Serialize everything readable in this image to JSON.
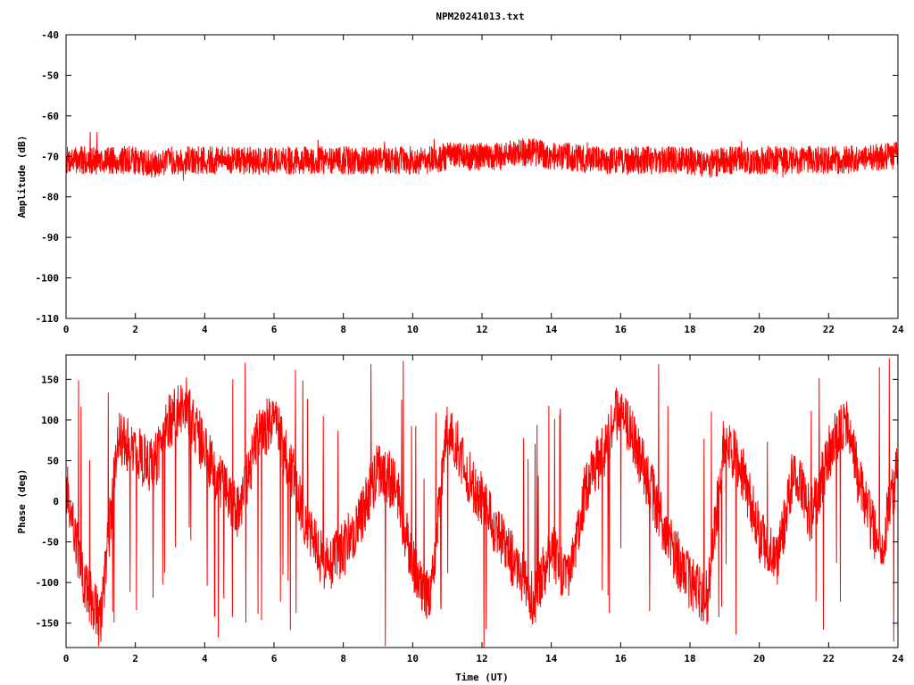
{
  "title": "NPM20241013.txt",
  "chart_data": [
    {
      "type": "line",
      "title": "NPM20241013.txt",
      "xlabel": "",
      "ylabel": "Amplitude (dB)",
      "xlim": [
        0,
        24
      ],
      "ylim": [
        -110,
        -40
      ],
      "xticks": [
        "0",
        "2",
        "4",
        "6",
        "8",
        "10",
        "12",
        "14",
        "16",
        "18",
        "20",
        "22",
        "24"
      ],
      "yticks": [
        "-40",
        "-50",
        "-60",
        "-70",
        "-80",
        "-90",
        "-100",
        "-110"
      ],
      "grid": false,
      "series": [
        {
          "color": "#ff0000",
          "x": [
            0,
            0.5,
            1,
            1.5,
            2,
            2.5,
            3,
            3.5,
            4,
            4.5,
            5,
            5.5,
            6,
            6.5,
            7,
            7.5,
            8,
            8.5,
            9,
            9.5,
            10,
            10.5,
            11,
            11.5,
            12,
            12.5,
            13,
            13.5,
            14,
            14.5,
            15,
            15.5,
            16,
            16.5,
            17,
            17.5,
            18,
            18.5,
            19,
            19.5,
            20,
            20.5,
            21,
            21.5,
            22,
            22.5,
            23,
            23.5,
            24
          ],
          "y": [
            -71,
            -71,
            -71,
            -71,
            -71,
            -72,
            -71,
            -71,
            -71,
            -71,
            -71,
            -71,
            -71,
            -71,
            -71,
            -71,
            -71,
            -71,
            -71,
            -71,
            -71,
            -71,
            -70,
            -70,
            -70,
            -70,
            -69,
            -69,
            -70,
            -70,
            -71,
            -71,
            -71,
            -71,
            -71,
            -71,
            -71,
            -72,
            -71,
            -71,
            -71,
            -71,
            -71,
            -71,
            -71,
            -71,
            -70,
            -70,
            -70
          ],
          "band": [
            -76,
            -64
          ]
        }
      ]
    },
    {
      "type": "line",
      "title": "",
      "xlabel": "Time (UT)",
      "ylabel": "Phase (deg)",
      "xlim": [
        0,
        24
      ],
      "ylim": [
        -180,
        180
      ],
      "xticks": [
        "0",
        "2",
        "4",
        "6",
        "8",
        "10",
        "12",
        "14",
        "16",
        "18",
        "20",
        "22",
        "24"
      ],
      "yticks": [
        "150",
        "100",
        "50",
        "0",
        "-50",
        "-100",
        "-150"
      ],
      "grid": false,
      "series": [
        {
          "color": "#ff0000",
          "x": [
            0,
            0.5,
            1,
            1.5,
            2,
            2.5,
            3,
            3.5,
            4,
            4.5,
            5,
            5.5,
            6,
            6.5,
            7,
            7.5,
            8,
            8.5,
            9,
            9.5,
            10,
            10.5,
            11,
            11.5,
            12,
            12.5,
            13,
            13.5,
            14,
            14.5,
            15,
            15.5,
            16,
            16.5,
            17,
            17.5,
            18,
            18.5,
            19,
            19.5,
            20,
            20.5,
            21,
            21.5,
            22,
            22.5,
            23,
            23.5,
            24
          ],
          "y": [
            20,
            -100,
            -150,
            80,
            60,
            40,
            100,
            120,
            60,
            20,
            -20,
            80,
            100,
            40,
            -40,
            -80,
            -60,
            -20,
            40,
            20,
            -80,
            -120,
            100,
            40,
            0,
            -40,
            -80,
            -120,
            -60,
            -100,
            20,
            60,
            120,
            60,
            0,
            -60,
            -100,
            -120,
            80,
            40,
            -40,
            -80,
            40,
            -20,
            60,
            100,
            0,
            -60,
            40
          ]
        }
      ]
    }
  ]
}
